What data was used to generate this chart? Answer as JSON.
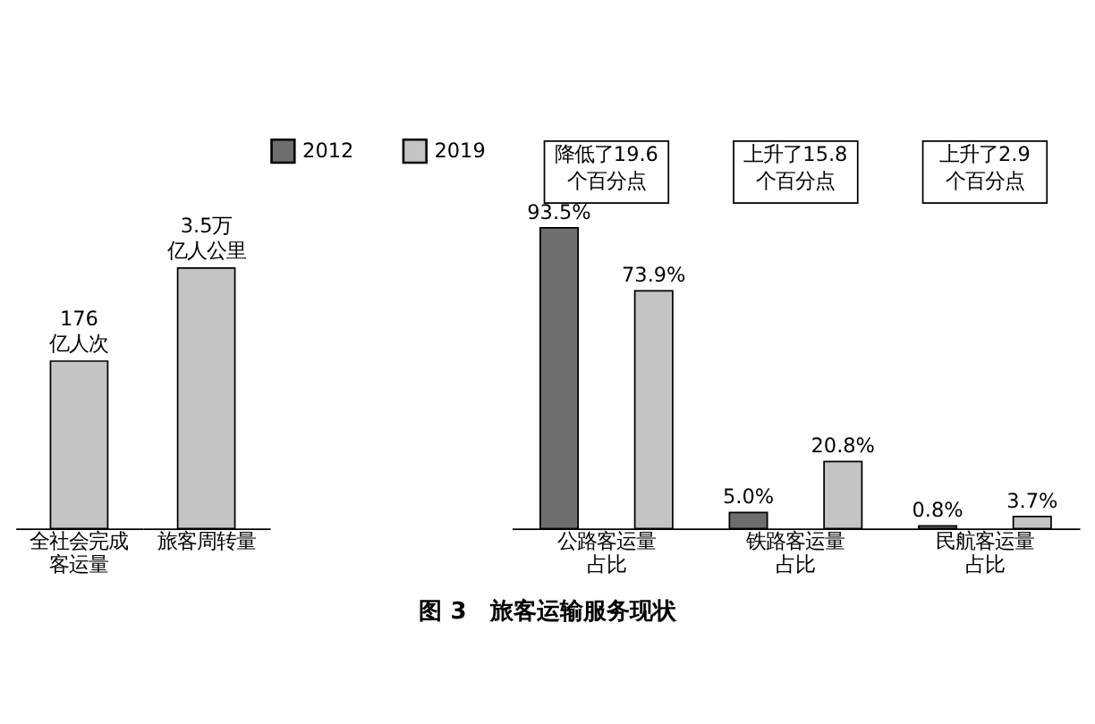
{
  "chart_data": [
    {
      "type": "bar",
      "categories": [
        "全社会完成客运量"
      ],
      "series": [
        {
          "name": "2019",
          "color": "#c4c4c4",
          "values": [
            176
          ],
          "value_labels": [
            "176亿人次"
          ]
        }
      ]
    },
    {
      "type": "bar",
      "categories": [
        "旅客周转量"
      ],
      "series": [
        {
          "name": "2019",
          "color": "#c4c4c4",
          "values": [
            3.5
          ],
          "value_labels": [
            "3.5万亿人公里"
          ]
        }
      ]
    },
    {
      "type": "bar",
      "categories": [
        "公路客运量占比",
        "铁路客运量占比",
        "民航客运量占比"
      ],
      "series": [
        {
          "name": "2012",
          "color": "#6e6e6e",
          "values": [
            93.5,
            5.0,
            0.8
          ],
          "value_labels": [
            "93.5%",
            "5.0%",
            "0.8%"
          ]
        },
        {
          "name": "2019",
          "color": "#c4c4c4",
          "values": [
            73.9,
            20.8,
            3.7
          ],
          "value_labels": [
            "73.9%",
            "20.8%",
            "3.7%"
          ]
        }
      ],
      "annotations": [
        "降低了19.6个百分点",
        "上升了15.8个百分点",
        "上升了2.9个百分点",
        "图 3　旅客运输服务现状"
      ],
      "legend": "top left",
      "grid": false
    }
  ]
}
